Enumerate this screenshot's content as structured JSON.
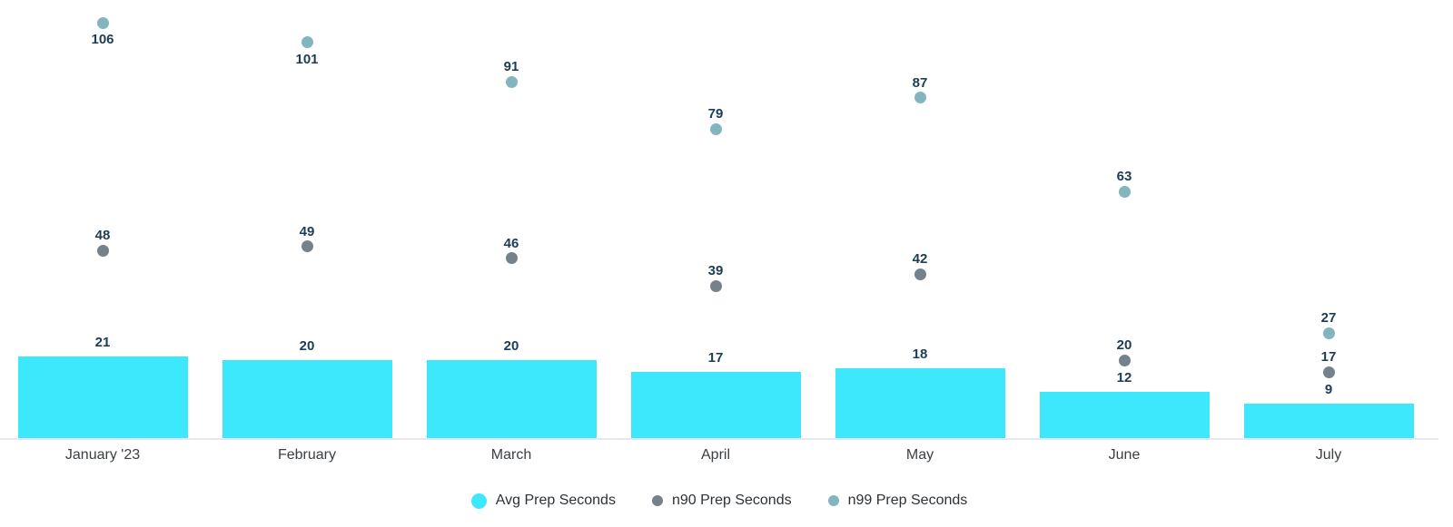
{
  "chart_data": {
    "type": "bar",
    "title": "",
    "xlabel": "",
    "ylabel": "",
    "categories": [
      "January '23",
      "February",
      "March",
      "April",
      "May",
      "June",
      "July"
    ],
    "series": [
      {
        "name": "Avg Prep Seconds",
        "type": "bar",
        "color": "#3EE8FC",
        "values": [
          21,
          20,
          20,
          17,
          18,
          12,
          9
        ]
      },
      {
        "name": "n90 Prep Seconds",
        "type": "scatter",
        "color": "#75828C",
        "values": [
          48,
          49,
          46,
          39,
          42,
          20,
          17
        ]
      },
      {
        "name": "n99 Prep Seconds",
        "type": "scatter",
        "color": "#82B5BE",
        "values": [
          106,
          101,
          91,
          79,
          87,
          63,
          27
        ]
      }
    ],
    "ylim": [
      0,
      112
    ],
    "grid": false,
    "value_labels": true,
    "value_label_color": "#1C3D54",
    "axis_line_color": "#E3E8F2",
    "legend_position": "bottom"
  }
}
